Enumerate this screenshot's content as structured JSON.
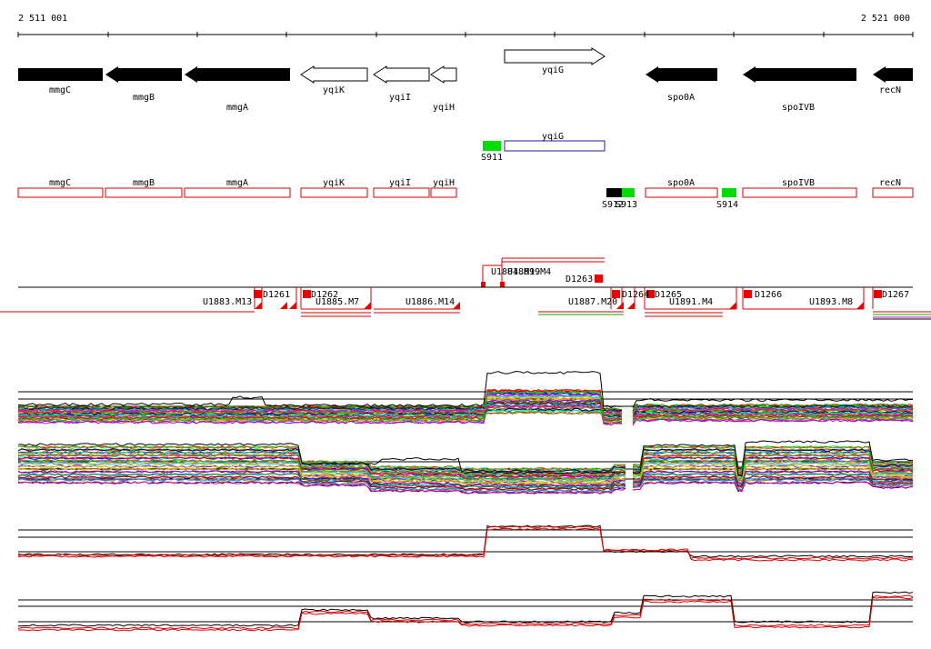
{
  "coordinates": {
    "start": "2 511 001",
    "end": "2 521 000"
  },
  "colors": {
    "gene_fill": "#000000",
    "outline_red": "#d40000",
    "outline_blue": "#1f1f9a",
    "signal_green": "#00dd00",
    "marker_red": "#ee0000",
    "trace_black": "#000000",
    "trace_red": "#dd0000"
  },
  "genes": [
    {
      "name": "mmgC",
      "style": "filled",
      "strand": "+"
    },
    {
      "name": "mmgB",
      "style": "filled",
      "strand": "-"
    },
    {
      "name": "mmgA",
      "style": "filled",
      "strand": "-"
    },
    {
      "name": "yqiK",
      "style": "open",
      "strand": "-"
    },
    {
      "name": "yqiI",
      "style": "open",
      "strand": "-"
    },
    {
      "name": "yqiH",
      "style": "open",
      "strand": "-"
    },
    {
      "name": "yqiG",
      "style": "open",
      "strand": "+"
    },
    {
      "name": "spo0A",
      "style": "filled",
      "strand": "-"
    },
    {
      "name": "spoIVB",
      "style": "filled",
      "strand": "-"
    },
    {
      "name": "recN",
      "style": "filled",
      "strand": "-"
    }
  ],
  "annotation_row": [
    {
      "name": "yqiG"
    },
    {
      "name": "S911"
    }
  ],
  "segment_row": [
    {
      "name": "mmgC"
    },
    {
      "name": "mmgB"
    },
    {
      "name": "mmgA"
    },
    {
      "name": "yqiK"
    },
    {
      "name": "yqiI"
    },
    {
      "name": "yqiH"
    },
    {
      "name": "spo0A"
    },
    {
      "name": "spoIVB"
    },
    {
      "name": "recN"
    },
    {
      "name": "S912"
    },
    {
      "name": "S913"
    },
    {
      "name": "S914"
    }
  ],
  "transcripts": [
    {
      "label": "U1884.M19"
    },
    {
      "label": "U1889.M4"
    },
    {
      "label": "D1263"
    },
    {
      "label": "D1261"
    },
    {
      "label": "D1262"
    },
    {
      "label": "U1883.M13"
    },
    {
      "label": "U1885.M7"
    },
    {
      "label": "U1886.M14"
    },
    {
      "label": "U1887.M20"
    },
    {
      "label": "D1264"
    },
    {
      "label": "D1265"
    },
    {
      "label": "U1891.M4"
    },
    {
      "label": "D1266"
    },
    {
      "label": "U1893.M8"
    },
    {
      "label": "D1267"
    }
  ]
}
